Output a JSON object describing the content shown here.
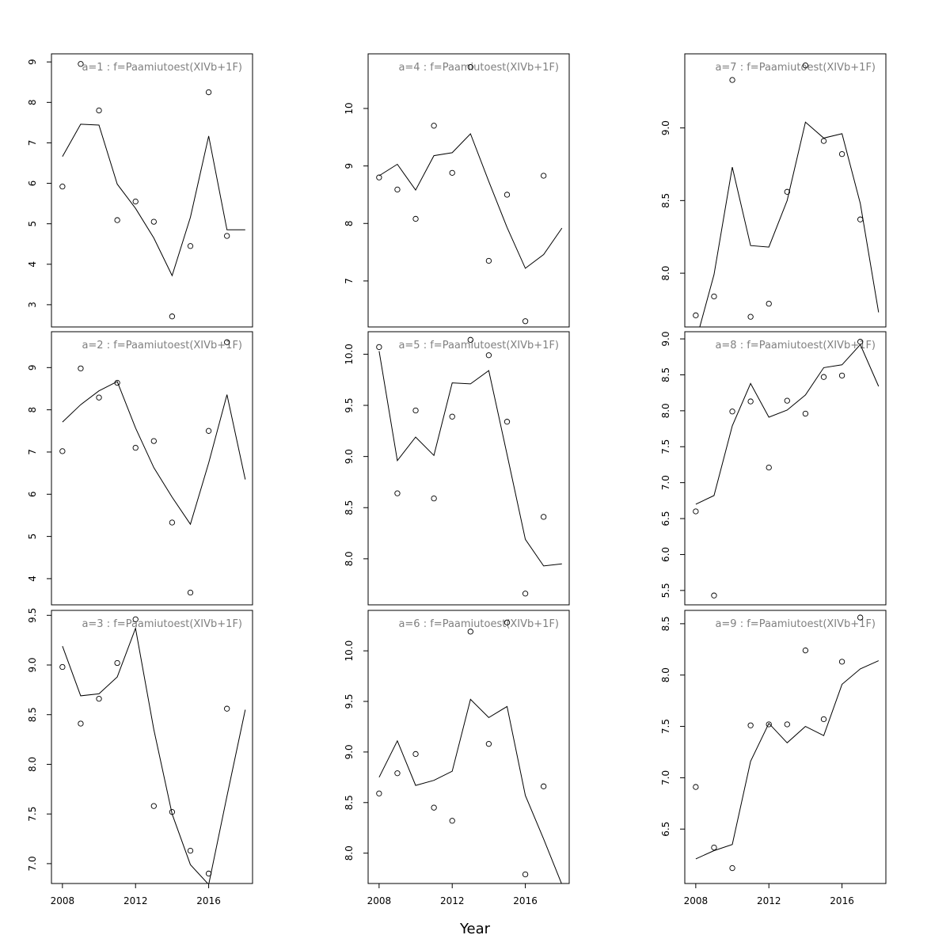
{
  "chart_data": {
    "type": "scatter",
    "xlabel": "Year",
    "x_ticks": [
      2008,
      2012,
      2016
    ],
    "x_ticks_bottom_row": [
      "2008",
      "2012",
      "2016"
    ],
    "xlim": [
      2007.4,
      2018.4
    ],
    "panels": [
      {
        "title": "a=1  :  f=Paamiutoest(XIVb+1F)",
        "ylim": [
          2.45,
          9.2
        ],
        "yticks": [
          "3",
          "4",
          "5",
          "6",
          "7",
          "8",
          "9"
        ],
        "obs_x": [
          2008,
          2009,
          2010,
          2011,
          2012,
          2013,
          2014,
          2015,
          2016,
          2017
        ],
        "obs_y": [
          5.92,
          8.95,
          7.8,
          5.09,
          5.55,
          5.05,
          2.71,
          4.45,
          8.25,
          4.7
        ],
        "fit_x": [
          2008,
          2009,
          2010,
          2011,
          2012,
          2013,
          2014,
          2015,
          2016,
          2017,
          2018
        ],
        "fit_y": [
          6.66,
          7.46,
          7.44,
          5.98,
          5.38,
          4.65,
          3.72,
          5.16,
          7.17,
          4.85,
          4.85
        ]
      },
      {
        "title": "a=4  :  f=Paamiutoest(XIVb+1F)",
        "ylim": [
          6.2,
          10.95
        ],
        "yticks": [
          "7",
          "8",
          "9",
          "10"
        ],
        "obs_x": [
          2008,
          2009,
          2010,
          2011,
          2012,
          2013,
          2014,
          2015,
          2016,
          2017
        ],
        "obs_y": [
          8.8,
          8.59,
          8.08,
          9.7,
          8.88,
          10.72,
          7.35,
          8.5,
          6.3,
          8.83
        ],
        "fit_x": [
          2008,
          2009,
          2010,
          2011,
          2012,
          2013,
          2014,
          2015,
          2016,
          2017,
          2018
        ],
        "fit_y": [
          8.83,
          9.03,
          8.58,
          9.18,
          9.23,
          9.56,
          8.73,
          7.93,
          7.22,
          7.46,
          7.92
        ]
      },
      {
        "title": "a=7  :  f=Paamiutoest(XIVb+1F)",
        "ylim": [
          7.63,
          9.51
        ],
        "yticks": [
          "8.0",
          "8.5",
          "9.0"
        ],
        "obs_x": [
          2008,
          2009,
          2010,
          2011,
          2012,
          2013,
          2014,
          2015,
          2016,
          2017
        ],
        "obs_y": [
          7.71,
          7.84,
          9.33,
          7.7,
          7.79,
          8.56,
          9.43,
          8.91,
          8.82,
          8.37
        ],
        "fit_x": [
          2008,
          2009,
          2010,
          2011,
          2012,
          2013,
          2014,
          2015,
          2016,
          2017,
          2018
        ],
        "fit_y": [
          7.53,
          7.99,
          8.73,
          8.19,
          8.18,
          8.5,
          9.04,
          8.93,
          8.96,
          8.48,
          7.73
        ]
      },
      {
        "title": "a=2  :  f=Paamiutoest(XIVb+1F)",
        "ylim": [
          3.38,
          9.85
        ],
        "yticks": [
          "4",
          "5",
          "6",
          "7",
          "8",
          "9"
        ],
        "obs_x": [
          2008,
          2009,
          2010,
          2011,
          2012,
          2013,
          2014,
          2015,
          2016,
          2017
        ],
        "obs_y": [
          7.02,
          8.98,
          8.29,
          8.64,
          7.1,
          7.26,
          5.33,
          3.67,
          7.5,
          9.6
        ],
        "fit_x": [
          2008,
          2009,
          2010,
          2011,
          2012,
          2013,
          2014,
          2015,
          2016,
          2017,
          2018
        ],
        "fit_y": [
          7.71,
          8.12,
          8.45,
          8.67,
          7.57,
          6.63,
          5.93,
          5.29,
          6.74,
          8.36,
          6.35
        ]
      },
      {
        "title": "a=5  :  f=Paamiutoest(XIVb+1F)",
        "ylim": [
          7.55,
          10.22
        ],
        "yticks": [
          "8.0",
          "8.5",
          "9.0",
          "9.5",
          "10.0"
        ],
        "obs_x": [
          2008,
          2009,
          2010,
          2011,
          2012,
          2013,
          2014,
          2015,
          2016,
          2017
        ],
        "obs_y": [
          10.07,
          8.64,
          9.45,
          8.59,
          9.39,
          10.14,
          9.99,
          9.34,
          7.66,
          8.41
        ],
        "fit_x": [
          2008,
          2009,
          2010,
          2011,
          2012,
          2013,
          2014,
          2015,
          2016,
          2017,
          2018
        ],
        "fit_y": [
          10.03,
          8.96,
          9.19,
          9.01,
          9.72,
          9.71,
          9.84,
          9.02,
          8.19,
          7.93,
          7.95
        ]
      },
      {
        "title": "a=8  :  f=Paamiutoest(XIVb+1F)",
        "ylim": [
          5.3,
          9.1
        ],
        "yticks": [
          "5.5",
          "6.0",
          "6.5",
          "7.0",
          "7.5",
          "8.0",
          "8.5",
          "9.0"
        ],
        "obs_x": [
          2008,
          2009,
          2010,
          2011,
          2012,
          2013,
          2014,
          2015,
          2016,
          2017
        ],
        "obs_y": [
          6.6,
          5.43,
          7.99,
          8.13,
          7.21,
          8.14,
          7.96,
          8.47,
          8.49,
          8.96
        ],
        "fit_x": [
          2008,
          2009,
          2010,
          2011,
          2012,
          2013,
          2014,
          2015,
          2016,
          2017,
          2018
        ],
        "fit_y": [
          6.7,
          6.82,
          7.79,
          8.38,
          7.91,
          8.01,
          8.22,
          8.6,
          8.64,
          8.92,
          8.34
        ]
      },
      {
        "title": "a=3  :  f=Paamiutoest(XIVb+1F)",
        "ylim": [
          6.8,
          9.55
        ],
        "yticks": [
          "7.0",
          "7.5",
          "8.0",
          "8.5",
          "9.0",
          "9.5"
        ],
        "obs_x": [
          2008,
          2009,
          2010,
          2011,
          2012,
          2013,
          2014,
          2015,
          2016,
          2017
        ],
        "obs_y": [
          8.98,
          8.41,
          8.66,
          9.02,
          9.46,
          7.58,
          7.52,
          7.13,
          6.9,
          8.56
        ],
        "fit_x": [
          2008,
          2009,
          2010,
          2011,
          2012,
          2013,
          2014,
          2015,
          2016,
          2017,
          2018
        ],
        "fit_y": [
          9.19,
          8.69,
          8.71,
          8.88,
          9.37,
          8.35,
          7.5,
          6.99,
          6.79,
          7.68,
          8.55
        ]
      },
      {
        "title": "a=6  :  f=Paamiutoest(XIVb+1F)",
        "ylim": [
          7.7,
          10.4
        ],
        "yticks": [
          "8.0",
          "8.5",
          "9.0",
          "9.5",
          "10.0"
        ],
        "obs_x": [
          2008,
          2009,
          2010,
          2011,
          2012,
          2013,
          2014,
          2015,
          2016,
          2017
        ],
        "obs_y": [
          8.59,
          8.79,
          8.98,
          8.45,
          8.32,
          10.19,
          9.08,
          10.28,
          7.79,
          8.66
        ],
        "fit_x": [
          2008,
          2009,
          2010,
          2011,
          2012,
          2013,
          2014,
          2015,
          2016,
          2017,
          2018
        ],
        "fit_y": [
          8.75,
          9.11,
          8.67,
          8.72,
          8.81,
          9.52,
          9.34,
          9.45,
          8.57,
          8.14,
          7.69
        ]
      },
      {
        "title": "a=9  :  f=Paamiutoest(XIVb+1F)",
        "ylim": [
          5.97,
          8.63
        ],
        "yticks": [
          "6.5",
          "7.0",
          "7.5",
          "8.0",
          "8.5"
        ],
        "obs_x": [
          2008,
          2009,
          2010,
          2011,
          2012,
          2013,
          2014,
          2015,
          2016,
          2017
        ],
        "obs_y": [
          6.91,
          6.32,
          6.12,
          7.51,
          7.52,
          7.52,
          8.24,
          7.57,
          8.13,
          8.56
        ],
        "fit_x": [
          2008,
          2009,
          2010,
          2011,
          2012,
          2013,
          2014,
          2015,
          2016,
          2017,
          2018
        ],
        "fit_y": [
          6.21,
          6.29,
          6.35,
          7.16,
          7.53,
          7.34,
          7.5,
          7.41,
          7.91,
          8.06,
          8.14
        ]
      }
    ]
  }
}
